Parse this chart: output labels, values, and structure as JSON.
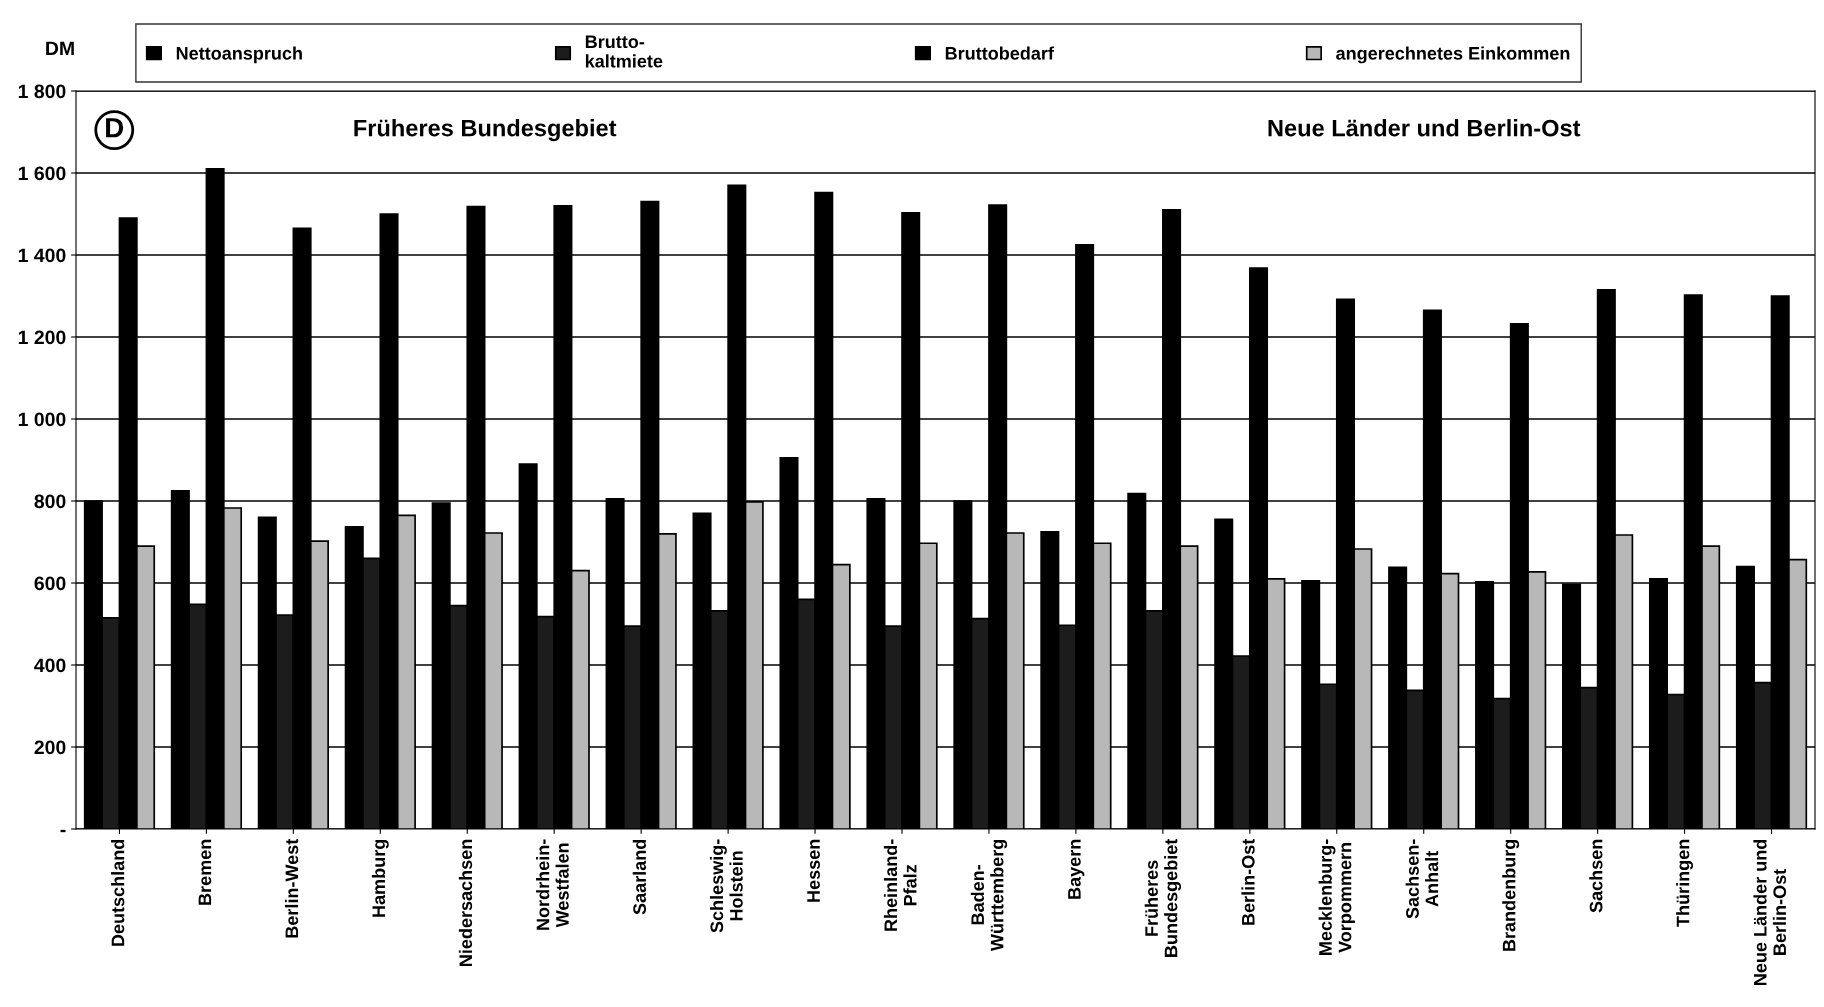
{
  "chart_data": {
    "type": "bar",
    "ylabel": "DM",
    "categories": [
      "Deutschland",
      "Bremen",
      "Berlin-West",
      "Hamburg",
      "Niedersachsen",
      "Nordrhein-\nWestfalen",
      "Saarland",
      "Schleswig-\nHolstein",
      "Hessen",
      "Rheinland-\nPfalz",
      "Baden-\nWürttemberg",
      "Bayern",
      "Früheres\nBundesgebiet",
      "Berlin-Ost",
      "Mecklenburg-\nVorpommern",
      "Sachsen-\nAnhalt",
      "Brandenburg",
      "Sachsen",
      "Thüringen",
      "Neue Länder und\nBerlin-Ost"
    ],
    "series": [
      {
        "name": "Nettoanspruch",
        "color": "#000000",
        "values": [
          800,
          825,
          760,
          737,
          795,
          890,
          805,
          770,
          905,
          805,
          800,
          725,
          818,
          755,
          605,
          638,
          603,
          597,
          610,
          640
        ]
      },
      {
        "name": "Brutto-\nkaltmiete",
        "color": "#1c1c1c",
        "values": [
          515,
          548,
          522,
          660,
          545,
          518,
          495,
          532,
          560,
          495,
          513,
          497,
          532,
          422,
          353,
          338,
          318,
          345,
          328,
          357
        ]
      },
      {
        "name": "Bruttobedarf",
        "color": "#000000",
        "values": [
          1490,
          1610,
          1465,
          1500,
          1518,
          1520,
          1530,
          1570,
          1552,
          1503,
          1522,
          1425,
          1510,
          1368,
          1292,
          1265,
          1232,
          1315,
          1302,
          1300
        ]
      },
      {
        "name": "angerechnetes Einkommen",
        "color": "#b8b8b8",
        "values": [
          690,
          783,
          702,
          765,
          722,
          630,
          720,
          798,
          645,
          697,
          722,
          697,
          690,
          610,
          683,
          623,
          627,
          717,
          690,
          657
        ]
      }
    ],
    "ylim": [
      0,
      1800
    ],
    "yticks": [
      {
        "value": 0,
        "label": "-"
      },
      200,
      400,
      600,
      800,
      {
        "value": 1000,
        "label": "1 000"
      },
      {
        "value": 1200,
        "label": "1 200"
      },
      {
        "value": 1400,
        "label": "1 400"
      },
      {
        "value": 1600,
        "label": "1 600"
      },
      {
        "value": 1800,
        "label": "1 800"
      }
    ],
    "annotations": [
      "D",
      "Früheres Bundesgebiet",
      "Neue Länder und Berlin-Ost"
    ],
    "grid": "y",
    "legend": "top"
  }
}
